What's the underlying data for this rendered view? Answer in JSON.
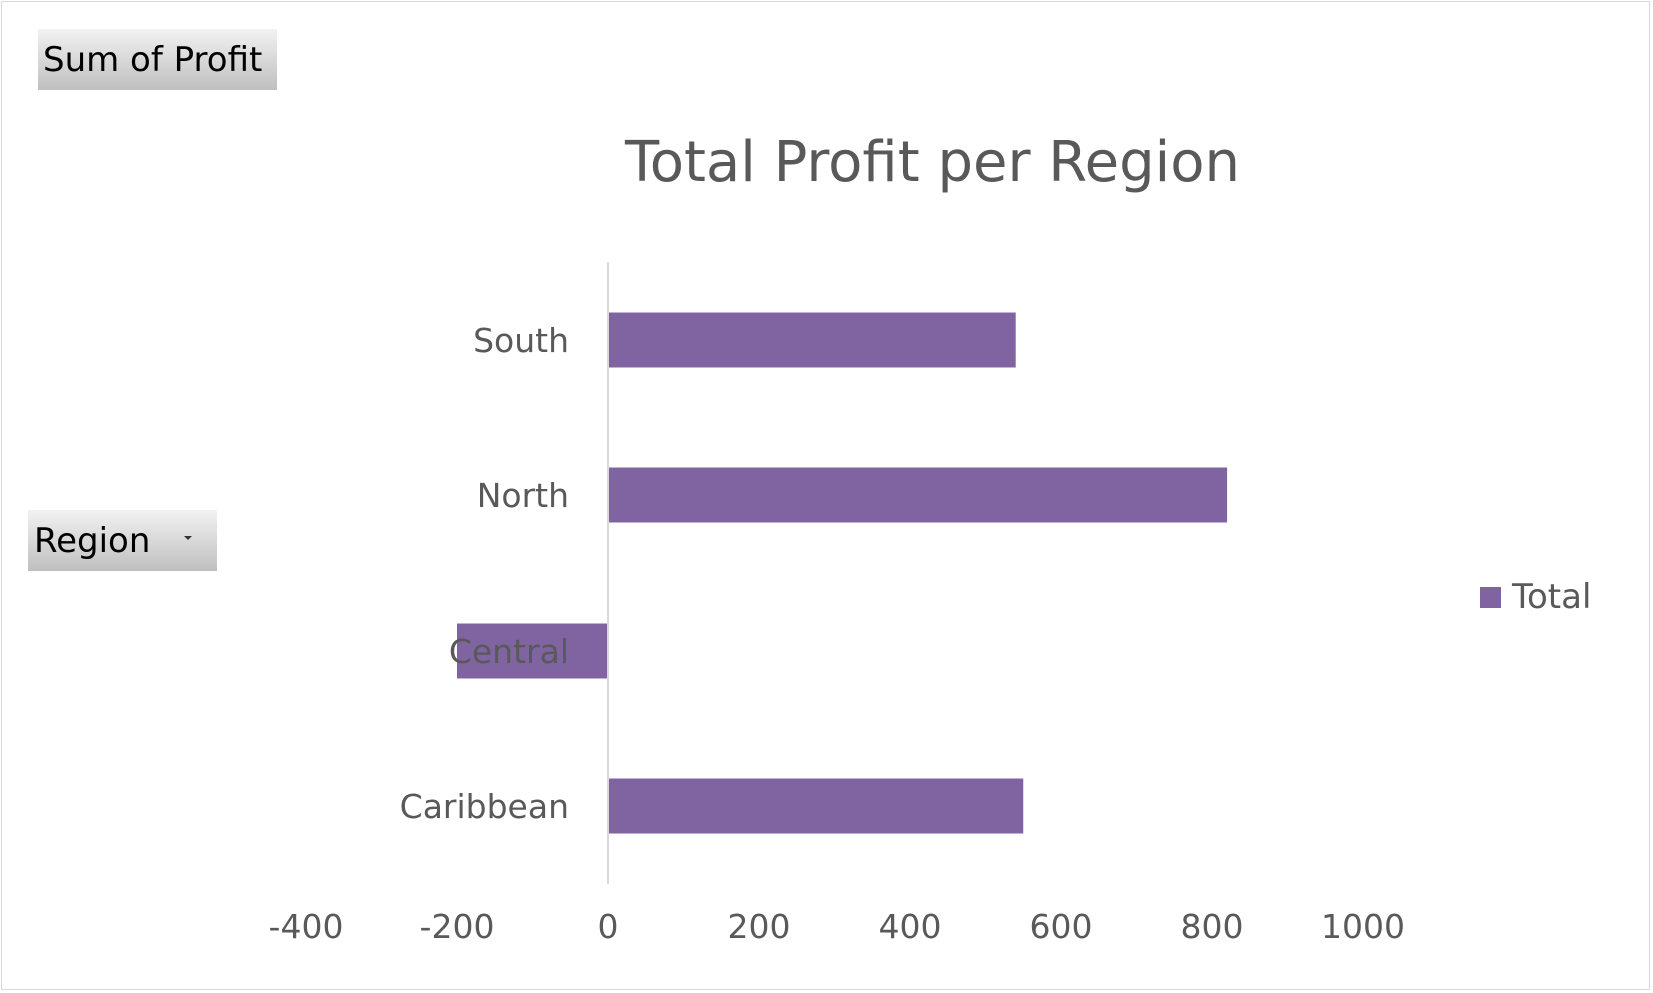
{
  "chart_fields": {
    "value_field": "Sum of Profit",
    "axis_field": "Region"
  },
  "chart_data": {
    "type": "bar",
    "orientation": "horizontal",
    "title": "Total Profit per Region",
    "categories": [
      "South",
      "North",
      "Central",
      "Caribbean"
    ],
    "series": [
      {
        "name": "Total",
        "values": [
          540,
          820,
          -200,
          550
        ],
        "color": "#8064a2"
      }
    ],
    "xlim": [
      -400,
      1000
    ],
    "x_ticks": [
      "-400",
      "-200",
      "0",
      "200",
      "400",
      "600",
      "800",
      "1000"
    ],
    "grid": false,
    "legend_position": "right",
    "axis_line_color": "#d9d9d9",
    "text_color": "#595959"
  }
}
